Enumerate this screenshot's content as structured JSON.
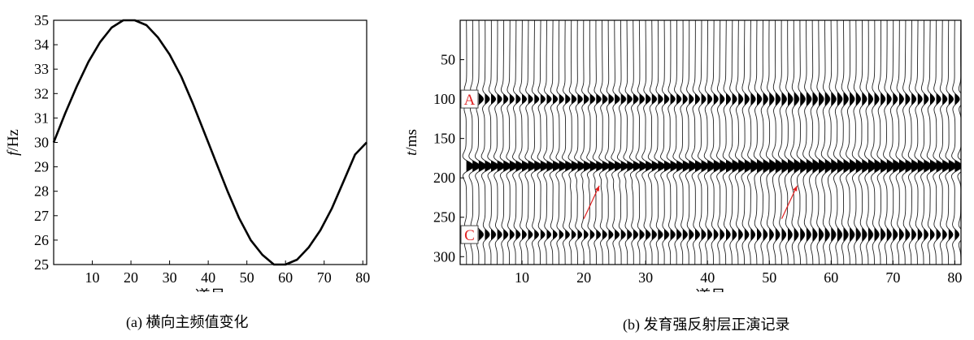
{
  "chart_data": [
    {
      "type": "line",
      "xlabel": "道号",
      "ylabel": "f/Hz",
      "ylabel_italic": "f",
      "ylabel_unit": "/Hz",
      "xlim": [
        0,
        81
      ],
      "ylim": [
        25,
        35
      ],
      "xticks": [
        10,
        20,
        30,
        40,
        50,
        60,
        70,
        80
      ],
      "yticks": [
        25,
        26,
        27,
        28,
        29,
        30,
        31,
        32,
        33,
        34,
        35
      ],
      "caption": "(a) 横向主频值变化",
      "series": [
        {
          "color": "#000000",
          "x": [
            0,
            3,
            6,
            9,
            12,
            15,
            18,
            21,
            24,
            27,
            30,
            33,
            36,
            39,
            42,
            45,
            48,
            51,
            54,
            57,
            60,
            63,
            66,
            69,
            72,
            75,
            78,
            81
          ],
          "y": [
            30.0,
            31.2,
            32.3,
            33.3,
            34.1,
            34.7,
            35.0,
            35.0,
            34.8,
            34.3,
            33.6,
            32.7,
            31.6,
            30.4,
            29.2,
            28.0,
            26.9,
            26.0,
            25.4,
            25.0,
            25.0,
            25.2,
            25.7,
            26.4,
            27.3,
            28.4,
            29.5,
            30.0
          ]
        }
      ],
      "grid": false,
      "legend": "none"
    },
    {
      "type": "wiggle-seismogram",
      "xlabel": "道号",
      "ylabel": "t/ms",
      "ylabel_italic": "t",
      "ylabel_unit": "/ms",
      "xlim": [
        0,
        81
      ],
      "ylim": [
        310,
        0
      ],
      "xticks": [
        10,
        20,
        30,
        40,
        50,
        60,
        70,
        80
      ],
      "yticks": [
        50,
        100,
        150,
        200,
        250,
        300
      ],
      "traces": 81,
      "reflectors": [
        {
          "label": "A",
          "time_ms": 100
        },
        {
          "label": "C",
          "time_ms": 272
        },
        {
          "label": "",
          "time_ms": 185
        }
      ],
      "arrows": [
        {
          "from_trace": 20,
          "from_time": 252,
          "to_trace": 22.5,
          "to_time": 210
        },
        {
          "from_trace": 52,
          "from_time": 252,
          "to_trace": 54.5,
          "to_time": 210
        }
      ],
      "caption": "(b) 发育强反射层正演记录",
      "annotation_color": "#e02020"
    }
  ]
}
